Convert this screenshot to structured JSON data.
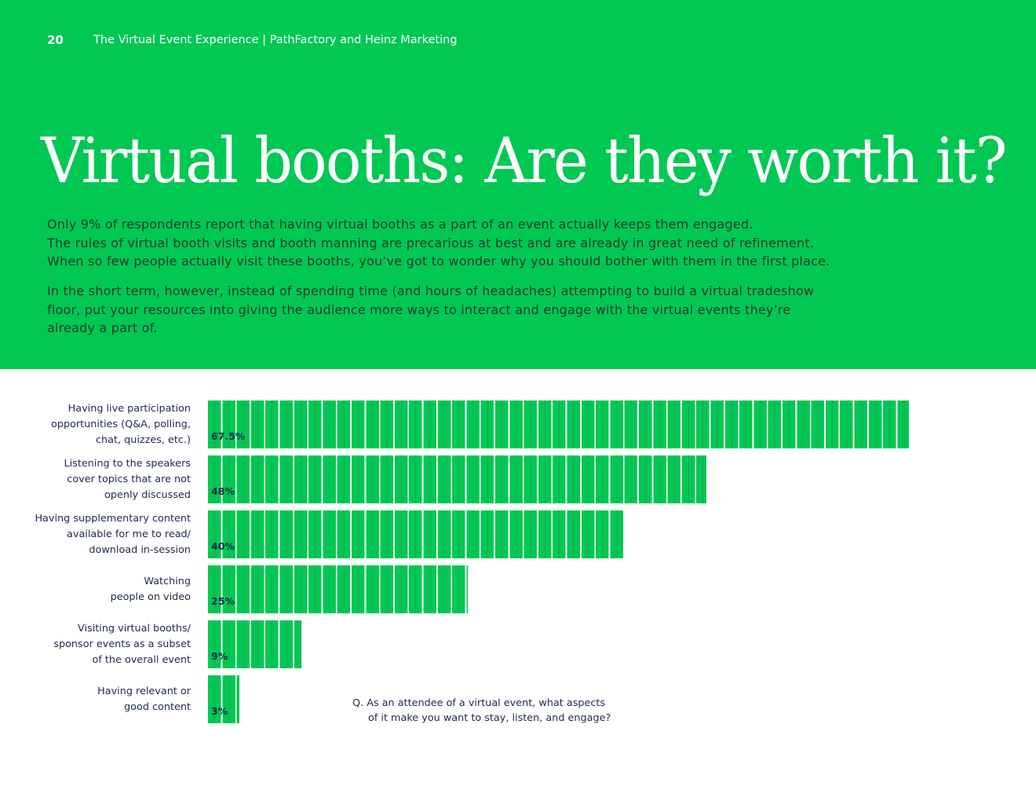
{
  "header": {
    "page_number": "20",
    "running_title": "The Virtual Event Experience | PathFactory and Heinz Marketing"
  },
  "title": "Virtual booths: Are they worth it?",
  "paragraphs": [
    "Only 9% of respondents report that having virtual booths as a part of an event actually keeps them engaged.\nThe rules of virtual booth visits and booth manning are precarious at best and are already in great need of refinement.\nWhen so few people actually visit these booths, you’ve got to wonder why you should bother with them in the first place.",
    "In the short term, however, instead of spending time (and hours of headaches) attempting to build a virtual tradeshow floor, put your resources into giving the audience more ways to interact and engage with the virtual events they’re already a part of."
  ],
  "chart_data": {
    "type": "bar",
    "orientation": "horizontal",
    "color": "#00c853",
    "categories": [
      "Having live participation\nopportunities (Q&A, polling,\nchat, quizzes, etc.)",
      "Listening to the speakers\ncover topics that are not\nopenly discussed",
      "Having supplementary content\navailable for me to read/\ndownload in-session",
      "Watching\npeople on video",
      "Visiting virtual booths/\nsponsor events as a subset\nof the overall event",
      "Having relevant or\ngood content"
    ],
    "values": [
      67.5,
      48,
      40,
      25,
      9,
      3
    ],
    "value_labels": [
      "67.5%",
      "48%",
      "40%",
      "25%",
      "9%",
      "3%"
    ],
    "note": "Q. As an attendee of a virtual event, what aspects\nof it make you want to stay, listen, and engage?"
  }
}
